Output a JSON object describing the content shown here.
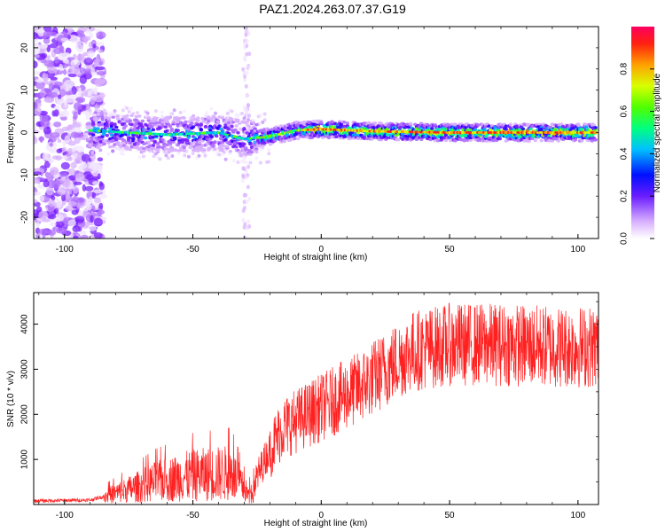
{
  "title": "PAZ1.2024.263.07.37.G19",
  "chart_data": [
    {
      "type": "heatmap",
      "xlabel": "Height of straight line (km)",
      "ylabel": "Frequency (Hz)",
      "xlim": [
        -112,
        108
      ],
      "ylim": [
        -25,
        25
      ],
      "xticks": [
        -100,
        -50,
        0,
        50,
        100
      ],
      "yticks": [
        -20,
        -10,
        0,
        10,
        20
      ],
      "colorbar": {
        "label": "Normalized spectral amplitude",
        "range": [
          0,
          1
        ],
        "ticks": [
          0.0,
          0.2,
          0.4,
          0.6,
          0.8
        ],
        "colormap": [
          "#ffffff",
          "#a64cff",
          "#3000ff",
          "#00c8ff",
          "#00ff60",
          "#c8ff00",
          "#ff8000",
          "#ff0040"
        ]
      },
      "ridge": {
        "description_points": [
          {
            "x": -90,
            "y": 0.5
          },
          {
            "x": -60,
            "y": -0.5
          },
          {
            "x": -40,
            "y": 0
          },
          {
            "x": -30,
            "y": -1.5
          },
          {
            "x": -20,
            "y": -1
          },
          {
            "x": -10,
            "y": 0.5
          },
          {
            "x": 0,
            "y": 0.8
          },
          {
            "x": 20,
            "y": 0.3
          },
          {
            "x": 50,
            "y": 0
          },
          {
            "x": 100,
            "y": 0
          }
        ],
        "noise_zone_until": -85,
        "peak_amplitude_from": -5
      }
    },
    {
      "type": "line",
      "xlabel": "Height of straight line (km)",
      "ylabel": "SNR (10 * v/v)",
      "xlim": [
        -112,
        108
      ],
      "ylim": [
        0,
        4700
      ],
      "xticks": [
        -100,
        -50,
        0,
        50,
        100
      ],
      "yticks": [
        1000,
        2000,
        3000,
        4000
      ],
      "color": "#ff2020",
      "trend": [
        {
          "x": -112,
          "y": 80
        },
        {
          "x": -90,
          "y": 100
        },
        {
          "x": -80,
          "y": 250
        },
        {
          "x": -65,
          "y": 500
        },
        {
          "x": -50,
          "y": 650
        },
        {
          "x": -35,
          "y": 700
        },
        {
          "x": -28,
          "y": 200
        },
        {
          "x": -22,
          "y": 1000
        },
        {
          "x": -15,
          "y": 1700
        },
        {
          "x": -5,
          "y": 2000
        },
        {
          "x": 5,
          "y": 2300
        },
        {
          "x": 15,
          "y": 2600
        },
        {
          "x": 25,
          "y": 3000
        },
        {
          "x": 35,
          "y": 3400
        },
        {
          "x": 50,
          "y": 3550
        },
        {
          "x": 70,
          "y": 3550
        },
        {
          "x": 90,
          "y": 3500
        },
        {
          "x": 108,
          "y": 3500
        }
      ]
    }
  ]
}
